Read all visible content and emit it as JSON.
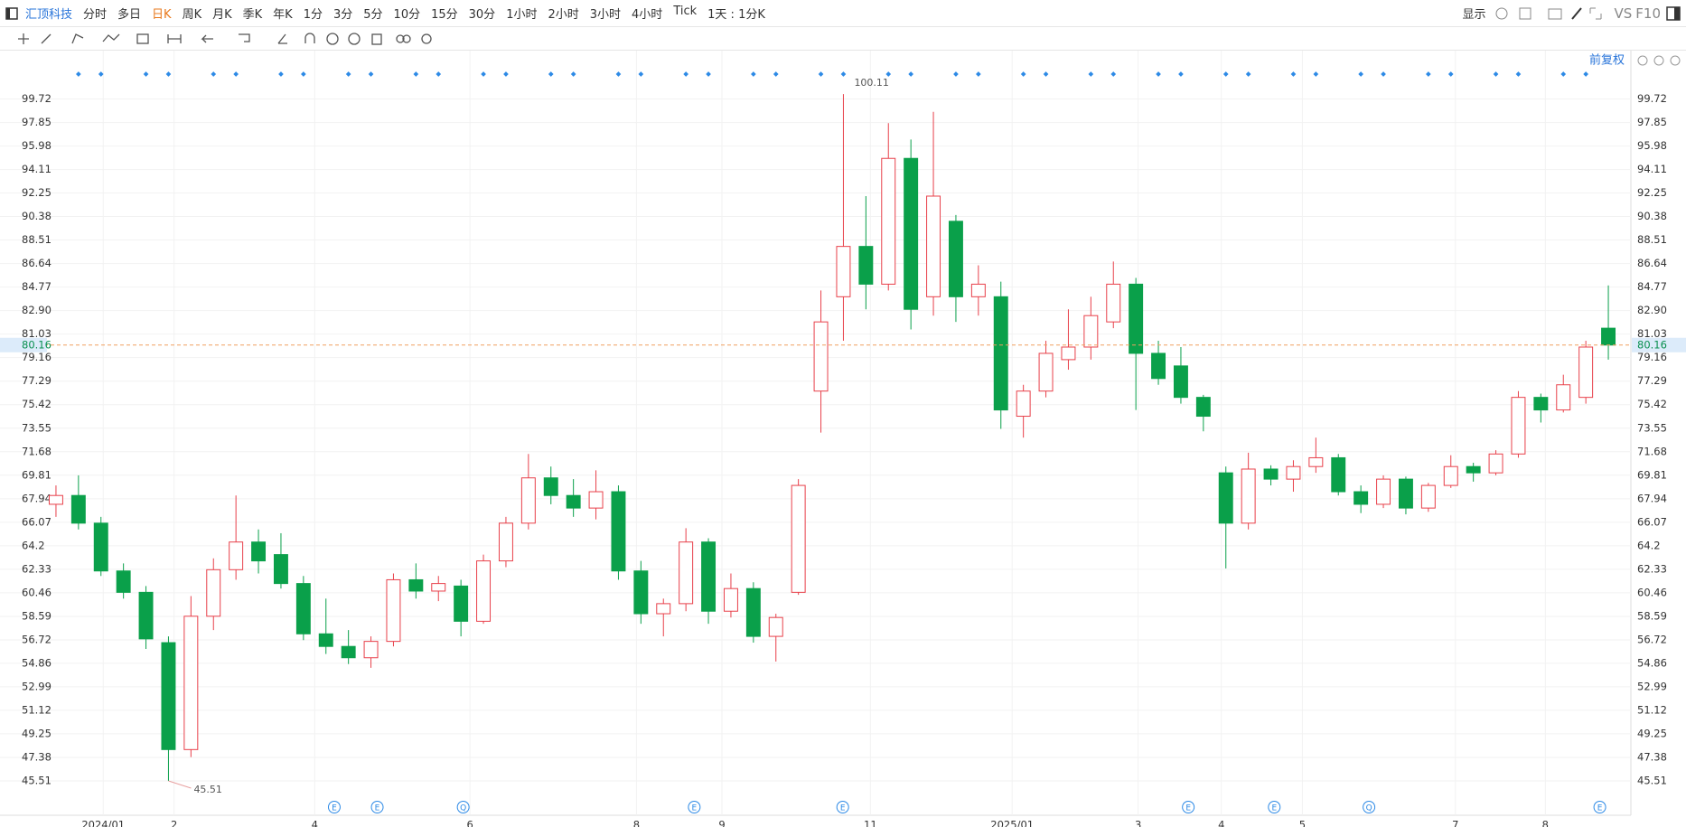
{
  "toolbar": {
    "stock": "汇顶科技",
    "periods": [
      "分时",
      "多日",
      "日K",
      "周K",
      "月K",
      "季K",
      "年K",
      "1分",
      "3分",
      "5分",
      "10分",
      "15分",
      "30分",
      "1小时",
      "2小时",
      "3小时",
      "4小时",
      "Tick",
      "1天 : 1分K"
    ],
    "selected": "日K",
    "right": [
      "显示",
      "VS",
      "F10"
    ]
  },
  "chart_data": {
    "type": "candlestick",
    "adjust_label": "前复权",
    "open": [
      67.5,
      68.2,
      66,
      62.2,
      60.5,
      56.5,
      48,
      58.6,
      62.3,
      64.5,
      63.5,
      61.2,
      57.2,
      56.2,
      55.3,
      56.6,
      61.5,
      60.6,
      61,
      58.2,
      63,
      66,
      69.6,
      68.2,
      67.2,
      68.5,
      62.2,
      58.8,
      59.6,
      64.5,
      59,
      60.8,
      57,
      60.5,
      76.5,
      84,
      88,
      85,
      95,
      84,
      90,
      84,
      84,
      74.5,
      76.5,
      79,
      80,
      82,
      85,
      79.5,
      78.5,
      76,
      70,
      66,
      70.3,
      69.5,
      70.5,
      71.2,
      68.5,
      67.5,
      69.5,
      67.2,
      69,
      70.5,
      70,
      71.5,
      76,
      75,
      76,
      81.5
    ],
    "high": [
      69,
      69.8,
      66.5,
      62.8,
      61,
      57,
      60.2,
      63.2,
      68.2,
      65.5,
      65.2,
      61.8,
      60,
      57.5,
      57,
      62,
      62.8,
      61.8,
      61.5,
      63.5,
      66.5,
      71.5,
      70.5,
      69.5,
      70.2,
      69,
      63,
      60,
      65.6,
      64.8,
      62,
      61.3,
      58.8,
      69.5,
      84.5,
      100.11,
      92,
      97.8,
      96.5,
      98.7,
      90.5,
      86.5,
      85.2,
      77,
      80.5,
      83,
      84,
      86.8,
      85.5,
      80.5,
      80,
      76.2,
      70.5,
      71.6,
      70.6,
      71,
      72.8,
      71.5,
      69,
      69.8,
      69.7,
      69.2,
      71.4,
      70.8,
      71.8,
      76.5,
      76.3,
      77.8,
      80.5,
      84.9
    ],
    "low": [
      66.5,
      65.5,
      61.8,
      60,
      56,
      45.51,
      47.4,
      57.5,
      61.5,
      62,
      60.8,
      56.7,
      55.6,
      54.8,
      54.5,
      56.2,
      60,
      59.8,
      57,
      58,
      62.5,
      65.5,
      67.5,
      66.5,
      66.3,
      61.5,
      58,
      57,
      59,
      58,
      58.5,
      56.5,
      55,
      60.3,
      73.2,
      80.5,
      83,
      84.5,
      81.4,
      82.5,
      82,
      82.5,
      73.5,
      72.8,
      76,
      78.2,
      79,
      81.5,
      75,
      77,
      75.5,
      73.3,
      62.4,
      65.5,
      69,
      68.5,
      70,
      68.2,
      66.8,
      67.2,
      66.7,
      66.9,
      68.8,
      69.3,
      69.8,
      71.2,
      74,
      74.8,
      75.5,
      79
    ],
    "close": [
      68.2,
      66,
      62.2,
      60.5,
      56.8,
      48,
      58.6,
      62.3,
      64.5,
      63,
      61.2,
      57.2,
      56.2,
      55.3,
      56.6,
      61.5,
      60.6,
      61.2,
      58.2,
      63,
      66,
      69.6,
      68.2,
      67.2,
      68.5,
      62.2,
      58.8,
      59.6,
      64.5,
      59,
      60.8,
      57,
      58.5,
      69,
      82,
      88,
      85,
      95,
      83,
      92,
      84,
      85,
      75,
      76.5,
      79.5,
      80,
      82.5,
      85,
      79.5,
      77.5,
      76,
      74.5,
      66,
      70.3,
      69.5,
      70.5,
      71.2,
      68.5,
      67.5,
      69.5,
      67.2,
      69,
      70.5,
      70,
      71.5,
      76,
      75,
      77,
      80,
      80.16
    ],
    "xlim": [
      -0.5,
      69.5
    ],
    "xticks": [
      {
        "value": 2.1,
        "label": "2024/01"
      },
      {
        "value": 5.25,
        "label": "2"
      },
      {
        "value": 11.5,
        "label": "4"
      },
      {
        "value": 18.4,
        "label": "6"
      },
      {
        "value": 25.8,
        "label": "8"
      },
      {
        "value": 29.6,
        "label": "9"
      },
      {
        "value": 36.2,
        "label": "11"
      },
      {
        "value": 42.5,
        "label": "2025/01"
      },
      {
        "value": 48.1,
        "label": "3"
      },
      {
        "value": 51.8,
        "label": "4"
      },
      {
        "value": 55.4,
        "label": "5"
      },
      {
        "value": 62.2,
        "label": "7"
      },
      {
        "value": 66.2,
        "label": "8"
      }
    ],
    "ylim": [
      43.64,
      102.49
    ],
    "yticks": [
      99.72,
      97.85,
      95.98,
      94.11,
      92.25,
      90.38,
      88.51,
      86.64,
      84.77,
      {
        "value": 82.9,
        "label": "82.90"
      },
      81.03,
      79.16,
      77.29,
      75.42,
      73.55,
      71.68,
      69.81,
      67.94,
      66.07,
      64.2,
      62.33,
      60.46,
      58.59,
      56.72,
      54.86,
      52.99,
      51.12,
      49.25,
      47.38,
      45.51
    ],
    "last_price": 80.16,
    "high_label": 100.11,
    "low_label": 45.51,
    "up_color": "#e8404a",
    "down_color": "#0aa04a",
    "grid": true,
    "events": [
      {
        "x": 12.37,
        "label": "E"
      },
      {
        "x": 14.28,
        "label": "E"
      },
      {
        "x": 18.1,
        "label": "Q"
      },
      {
        "x": 28.37,
        "label": "E"
      },
      {
        "x": 34.97,
        "label": "E"
      },
      {
        "x": 50.33,
        "label": "E"
      },
      {
        "x": 54.15,
        "label": "E"
      },
      {
        "x": 58.36,
        "label": "Q"
      },
      {
        "x": 68.62,
        "label": "E"
      }
    ]
  }
}
